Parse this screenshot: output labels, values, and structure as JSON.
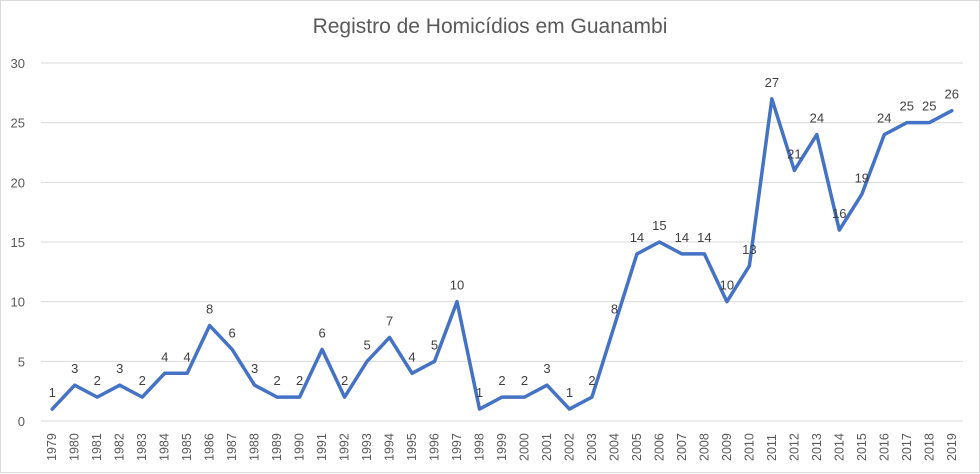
{
  "chart_data": {
    "type": "line",
    "title": "Registro de Homicídios em Guanambi",
    "xlabel": "",
    "ylabel": "",
    "ylim": [
      0,
      30
    ],
    "yticks": [
      0,
      5,
      10,
      15,
      20,
      25,
      30
    ],
    "grid": true,
    "legend": "none",
    "color": "#4472c4",
    "categories": [
      "1979",
      "1980",
      "1981",
      "1982",
      "1983",
      "1984",
      "1985",
      "1986",
      "1987",
      "1988",
      "1989",
      "1990",
      "1991",
      "1992",
      "1993",
      "1994",
      "1995",
      "1996",
      "1997",
      "1998",
      "1999",
      "2000",
      "2001",
      "2002",
      "2003",
      "2004",
      "2005",
      "2006",
      "2007",
      "2008",
      "2009",
      "2010",
      "2011",
      "2012",
      "2013",
      "2014",
      "2015",
      "2016",
      "2017",
      "2018",
      "2019"
    ],
    "values": [
      1,
      3,
      2,
      3,
      2,
      4,
      4,
      8,
      6,
      3,
      2,
      2,
      6,
      2,
      5,
      7,
      4,
      5,
      10,
      1,
      2,
      2,
      3,
      1,
      2,
      8,
      14,
      15,
      14,
      14,
      10,
      13,
      27,
      21,
      24,
      16,
      19,
      24,
      25,
      25,
      26
    ]
  }
}
